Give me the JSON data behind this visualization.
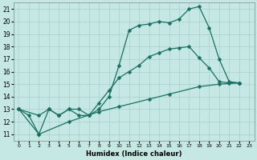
{
  "xlabel": "Humidex (Indice chaleur)",
  "xlim": [
    -0.5,
    23.5
  ],
  "ylim": [
    10.5,
    21.5
  ],
  "xticks": [
    0,
    1,
    2,
    3,
    4,
    5,
    6,
    7,
    8,
    9,
    10,
    11,
    12,
    13,
    14,
    15,
    16,
    17,
    18,
    19,
    20,
    21,
    22,
    23
  ],
  "yticks": [
    11,
    12,
    13,
    14,
    15,
    16,
    17,
    18,
    19,
    20,
    21
  ],
  "background_color": "#c5e8e4",
  "grid_color": "#a8d0cc",
  "line_color": "#1a7060",
  "line1_x": [
    0,
    1,
    2,
    3,
    4,
    5,
    6,
    7,
    8,
    9,
    10,
    11,
    12,
    13,
    14,
    15,
    16,
    17,
    18,
    19,
    20,
    21,
    22
  ],
  "line1_y": [
    13,
    12.5,
    11,
    13,
    12.5,
    13,
    12.5,
    12.5,
    13,
    14,
    16.5,
    19.3,
    19.7,
    19.8,
    20.0,
    19.9,
    20.2,
    21.0,
    21.2,
    19.5,
    17.0,
    15.2,
    15.1
  ],
  "line2_x": [
    0,
    2,
    3,
    4,
    5,
    6,
    7,
    8,
    9,
    10,
    11,
    12,
    13,
    14,
    15,
    16,
    17,
    18,
    19,
    20,
    21,
    22
  ],
  "line2_y": [
    13,
    12.5,
    13,
    12.5,
    13,
    13,
    12.5,
    13.5,
    14.5,
    15.5,
    16.0,
    16.5,
    17.2,
    17.5,
    17.8,
    17.9,
    18.0,
    17.1,
    16.3,
    15.2,
    15.1,
    15.1
  ],
  "line3_x": [
    0,
    2,
    5,
    8,
    10,
    13,
    15,
    18,
    20,
    22
  ],
  "line3_y": [
    13,
    11,
    12.0,
    12.8,
    13.2,
    13.8,
    14.2,
    14.8,
    15.0,
    15.1
  ],
  "marker_size": 2.5,
  "linewidth": 0.9
}
